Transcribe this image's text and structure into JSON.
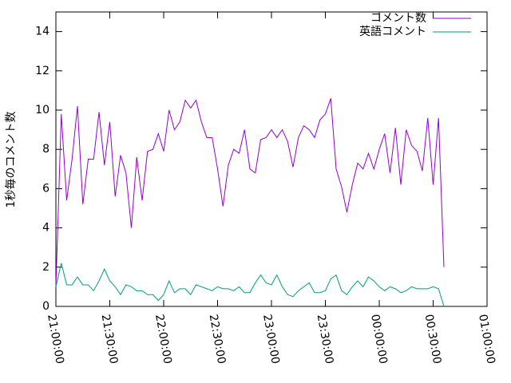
{
  "chart_data": {
    "type": "line",
    "ylabel": "1秒毎のコメント数",
    "x": [
      "21:00:00",
      "21:03:00",
      "21:06:00",
      "21:09:00",
      "21:12:00",
      "21:15:00",
      "21:18:00",
      "21:21:00",
      "21:24:00",
      "21:27:00",
      "21:30:00",
      "21:33:00",
      "21:36:00",
      "21:39:00",
      "21:42:00",
      "21:45:00",
      "21:48:00",
      "21:51:00",
      "21:54:00",
      "21:57:00",
      "22:00:00",
      "22:03:00",
      "22:06:00",
      "22:09:00",
      "22:12:00",
      "22:15:00",
      "22:18:00",
      "22:21:00",
      "22:24:00",
      "22:27:00",
      "22:30:00",
      "22:33:00",
      "22:36:00",
      "22:39:00",
      "22:42:00",
      "22:45:00",
      "22:48:00",
      "22:51:00",
      "22:54:00",
      "22:57:00",
      "23:00:00",
      "23:03:00",
      "23:06:00",
      "23:09:00",
      "23:12:00",
      "23:15:00",
      "23:18:00",
      "23:21:00",
      "23:24:00",
      "23:27:00",
      "23:30:00",
      "23:33:00",
      "23:36:00",
      "23:39:00",
      "23:42:00",
      "23:45:00",
      "23:48:00",
      "23:51:00",
      "23:54:00",
      "23:57:00",
      "00:00:00",
      "00:03:00",
      "00:06:00",
      "00:09:00",
      "00:12:00",
      "00:15:00",
      "00:18:00",
      "00:21:00",
      "00:24:00",
      "00:27:00",
      "00:30:00",
      "00:33:00",
      "00:36:00"
    ],
    "series": [
      {
        "name": "コメント数",
        "color": "#9400d3",
        "values": [
          1.0,
          9.8,
          5.4,
          7.5,
          10.2,
          5.2,
          7.5,
          7.5,
          9.9,
          7.2,
          9.4,
          5.6,
          7.7,
          6.8,
          4.0,
          7.6,
          5.4,
          7.9,
          8.0,
          8.8,
          7.9,
          10.0,
          9.0,
          9.4,
          10.5,
          10.1,
          10.5,
          9.4,
          8.6,
          8.6,
          7.0,
          5.1,
          7.2,
          8.0,
          7.8,
          9.0,
          7.0,
          6.8,
          8.5,
          8.6,
          9.0,
          8.6,
          9.0,
          8.4,
          7.1,
          8.6,
          9.2,
          9.0,
          8.6,
          9.5,
          9.8,
          10.6,
          7.0,
          6.1,
          4.8,
          6.2,
          7.3,
          7.0,
          7.8,
          7.0,
          8.0,
          8.8,
          6.8,
          9.1,
          6.2,
          9.0,
          8.2,
          7.9,
          6.9,
          9.6,
          6.2,
          9.6,
          2.0
        ]
      },
      {
        "name": "英語コメント",
        "color": "#009e73",
        "values": [
          1.0,
          2.2,
          1.1,
          1.1,
          1.5,
          1.1,
          1.1,
          0.8,
          1.3,
          1.9,
          1.3,
          1.0,
          0.6,
          1.1,
          1.0,
          0.8,
          0.8,
          0.6,
          0.6,
          0.3,
          0.6,
          1.3,
          0.7,
          0.9,
          0.9,
          0.6,
          1.1,
          1.0,
          0.9,
          0.8,
          1.0,
          0.9,
          0.9,
          0.8,
          1.0,
          0.7,
          0.7,
          1.2,
          1.6,
          1.2,
          1.1,
          1.6,
          1.0,
          0.6,
          0.5,
          0.8,
          1.0,
          1.2,
          0.7,
          0.7,
          0.8,
          1.4,
          1.6,
          0.8,
          0.6,
          1.0,
          1.3,
          1.0,
          1.5,
          1.3,
          1.0,
          0.8,
          1.0,
          0.9,
          0.7,
          0.8,
          1.0,
          0.9,
          0.9,
          0.9,
          1.0,
          0.9,
          0.0
        ]
      }
    ],
    "xlim": [
      "21:00:00",
      "01:00:00"
    ],
    "xticks": [
      "21:00:00",
      "21:30:00",
      "22:00:00",
      "22:30:00",
      "23:00:00",
      "23:30:00",
      "00:00:00",
      "00:30:00",
      "01:00:00"
    ],
    "ylim": [
      0,
      15
    ],
    "yticks": [
      0,
      2,
      4,
      6,
      8,
      10,
      12,
      14
    ],
    "legend": "top-right"
  }
}
